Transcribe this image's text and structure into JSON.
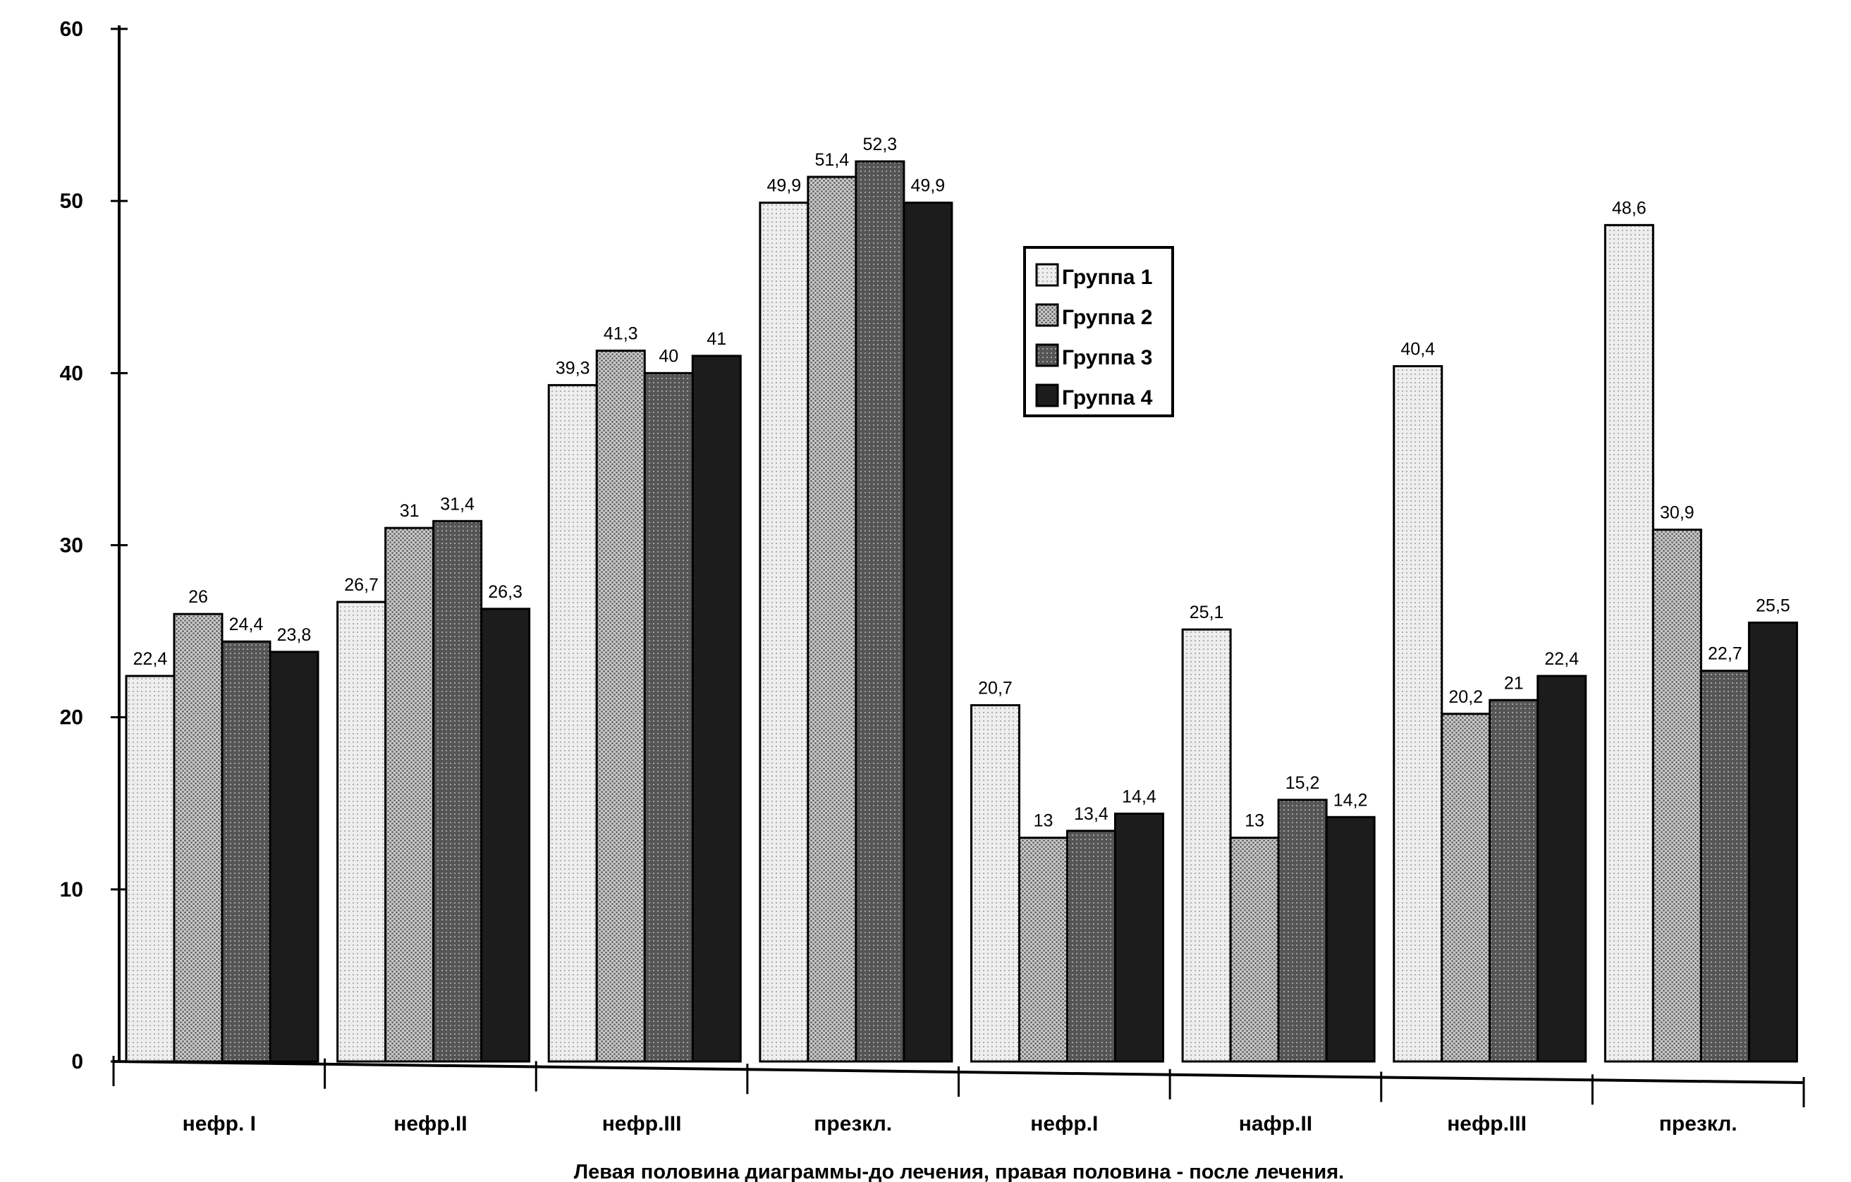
{
  "chart_data": {
    "type": "bar",
    "title": "",
    "xlabel": "Левая половина диаграммы-до лечения, правая половина - после лечения.",
    "ylabel": "",
    "ylim": [
      0,
      60
    ],
    "yticks": [
      0,
      10,
      20,
      30,
      40,
      50,
      60
    ],
    "grid": false,
    "legend_position": "top-center-right",
    "categories": [
      "нефр. I",
      "нефр.II",
      "нефр.III",
      "презкл.",
      "нефр.I",
      "нафр.II",
      "нефр.III",
      "презкл."
    ],
    "series": [
      {
        "name": "Группа 1",
        "color": "#e4e4e4",
        "values": [
          22.4,
          26.7,
          39.3,
          49.9,
          20.7,
          25.1,
          40.4,
          48.6
        ],
        "labels": [
          "22,4",
          "26,7",
          "39,3",
          "49,9",
          "20,7",
          "25,1",
          "40,4",
          "48,6"
        ]
      },
      {
        "name": "Группа 2",
        "color": "#b0b0b0",
        "values": [
          26,
          31,
          41.3,
          51.4,
          13,
          13,
          20.2,
          30.9
        ],
        "labels": [
          "26",
          "31",
          "41,3",
          "51,4",
          "13",
          "13",
          "20,2",
          "30,9"
        ]
      },
      {
        "name": "Группа 3",
        "color": "#666666",
        "values": [
          24.4,
          31.4,
          40,
          52.3,
          13.4,
          15.2,
          21,
          22.7
        ],
        "labels": [
          "24,4",
          "31,4",
          "40",
          "52,3",
          "13,4",
          "15,2",
          "21",
          "22,7"
        ]
      },
      {
        "name": "Группа 4",
        "color": "#1e1e1e",
        "values": [
          23.8,
          26.3,
          41,
          49.9,
          14.4,
          14.2,
          22.4,
          25.5
        ],
        "labels": [
          "23,8",
          "26,3",
          "41",
          "49,9",
          "14,4",
          "14,2",
          "22,4",
          "25,5"
        ]
      }
    ]
  }
}
